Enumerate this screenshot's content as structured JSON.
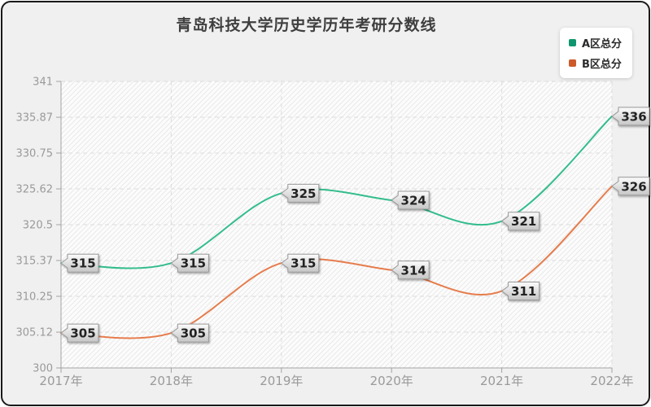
{
  "chart_title": "青岛科技大学历史学历年考研分数线",
  "chart_data": {
    "type": "line",
    "title": "青岛科技大学历史学历年考研分数线",
    "categories": [
      "2017年",
      "2018年",
      "2019年",
      "2020年",
      "2021年",
      "2022年"
    ],
    "series": [
      {
        "name": "A区总分",
        "values": [
          315,
          315,
          325,
          324,
          321,
          336
        ],
        "color": "#33bd8c",
        "legend_color": "#10966e"
      },
      {
        "name": "B区总分",
        "values": [
          305,
          305,
          315,
          314,
          311,
          326
        ],
        "color": "#e67c4c",
        "legend_color": "#cc5a2a"
      }
    ],
    "ylim": [
      300,
      341
    ],
    "yticks": [
      "300",
      "305.12",
      "310.25",
      "315.37",
      "320.5",
      "325.62",
      "330.75",
      "335.87",
      "341"
    ],
    "xlabel": "",
    "ylabel": "",
    "grid": "dashed horizontal and vertical",
    "legend_position": "top-right",
    "plot_background": "diagonal-hatch",
    "data_labels": "gray callout tags at every point",
    "line_style": "smooth spline, no point markers"
  },
  "styles": {
    "outer_background": "#f0f0f0",
    "frame_border": "#1a1a1a",
    "title_color": "#3f3f3f",
    "plot_bg": "#fcfcfc",
    "hatch_line": "#e9e9e9",
    "grid_color": "#dcdcdc",
    "axis_color": "#a3a3a3",
    "tick_label_color": "#9a9a9a",
    "label_text": "#222222",
    "label_border": "#999999",
    "label_fill_top": "#fcfcfc",
    "label_fill_bottom": "#c6c6c6",
    "legend_bg": "#ffffff",
    "legend_text": "#2b2b2b"
  }
}
